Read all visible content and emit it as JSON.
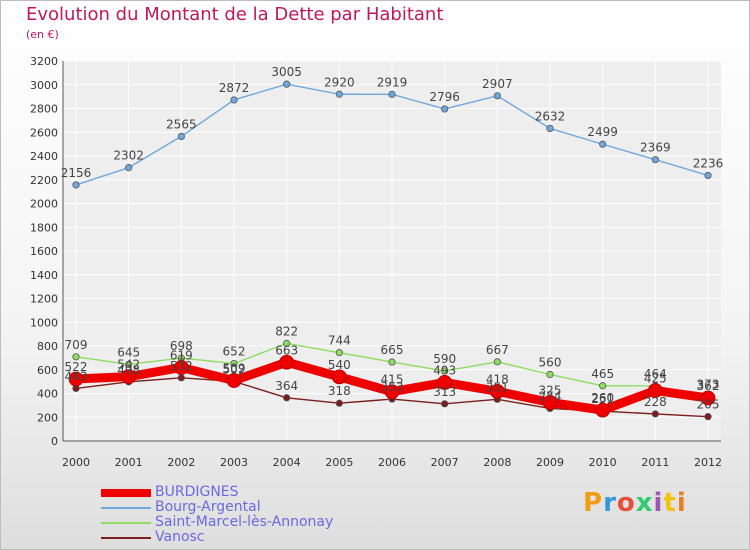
{
  "header": {
    "title": "Evolution du Montant de la Dette par Habitant",
    "subtitle": "(en €)"
  },
  "brand": {
    "text": "Proxiti"
  },
  "chart_data": {
    "type": "line",
    "categories": [
      "2000",
      "2001",
      "2002",
      "2003",
      "2004",
      "2005",
      "2006",
      "2007",
      "2008",
      "2009",
      "2010",
      "2011",
      "2012"
    ],
    "ylim": [
      0,
      3200
    ],
    "yticks": [
      0,
      200,
      400,
      600,
      800,
      1000,
      1200,
      1400,
      1600,
      1800,
      2000,
      2200,
      2400,
      2600,
      2800,
      3000,
      3200
    ],
    "grid": true,
    "legend_position": "bottom-left",
    "series": [
      {
        "name": "BURDIGNES",
        "color": "#ee0000",
        "values": [
          522,
          542,
          619,
          509,
          663,
          540,
          415,
          493,
          418,
          325,
          260,
          425,
          362
        ]
      },
      {
        "name": "Bourg-Argental",
        "color": "#6fa8dc",
        "values": [
          2156,
          2302,
          2565,
          2872,
          3005,
          2920,
          2919,
          2796,
          2907,
          2632,
          2499,
          2369,
          2236
        ]
      },
      {
        "name": "Saint-Marcel-lès-Annonay",
        "color": "#8edc62",
        "values": [
          709,
          645,
          698,
          652,
          822,
          744,
          665,
          590,
          667,
          560,
          465,
          464,
          373
        ]
      },
      {
        "name": "Vanosc",
        "color": "#7a1e1e",
        "values": [
          443,
          498,
          532,
          502,
          364,
          318,
          353,
          313,
          351,
          274,
          251,
          228,
          205
        ]
      }
    ]
  }
}
